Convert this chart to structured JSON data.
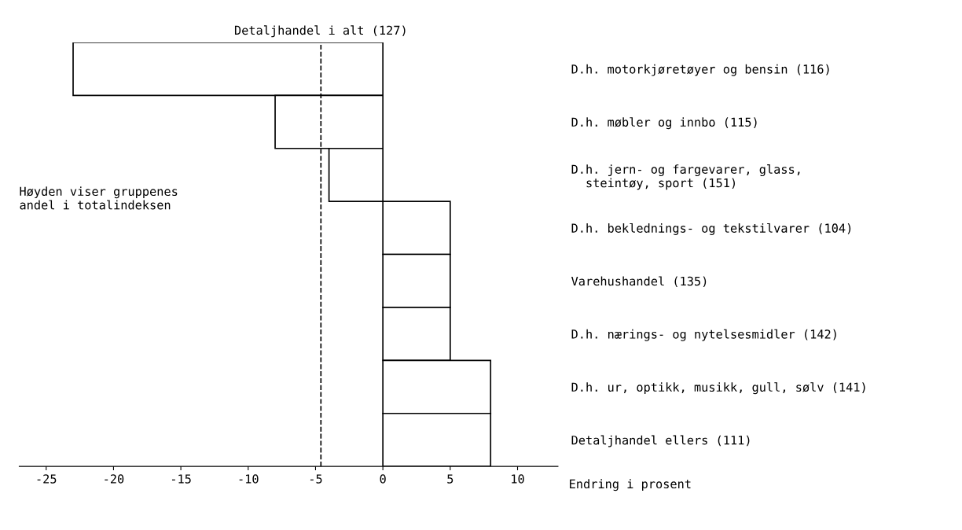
{
  "chart_data": {
    "type": "bar",
    "orientation": "horizontal",
    "categories": [
      "D.h. motorkjøretøyer og bensin (116)",
      "D.h. møbler og innbo (115)",
      "D.h. jern- og fargevarer, glass,\n  steintøy, sport (151)",
      "D.h. beklednings- og tekstilvarer (104)",
      "Varehushandel (135)",
      "D.h. nærings- og nytelsesmidler (142)",
      "D.h. ur, optikk, musikk, gull, sølv (141)",
      "Detaljhandel ellers (111)"
    ],
    "values": [
      -23,
      -8,
      -4,
      5,
      5,
      5,
      8,
      8
    ],
    "color": "#ffffff",
    "xlim": [
      -27,
      13
    ],
    "xticks": [
      -25,
      -20,
      -15,
      -10,
      -5,
      0,
      5,
      10
    ],
    "ref_lines": [
      {
        "axis": "x",
        "value": -4.6,
        "label": "Detaljhandel i alt (127)",
        "line_style": "dashed",
        "color": "#000000"
      }
    ],
    "annotations": [
      "Høyden viser gruppenes\nandel i totalindeksen",
      "Endring i prosent"
    ],
    "grid": false,
    "legend": false
  }
}
